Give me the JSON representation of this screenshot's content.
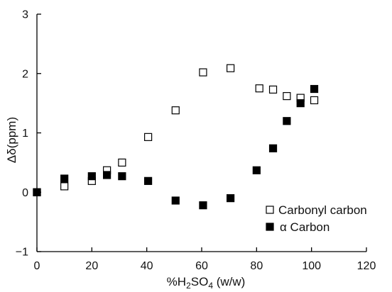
{
  "chart_data": {
    "type": "scatter",
    "xlabel_parts": [
      "%H",
      "2",
      "SO",
      "4",
      " (w/w)"
    ],
    "ylabel": "Δδ(ppm)",
    "xlim": [
      0,
      120
    ],
    "ylim": [
      -1,
      3
    ],
    "x_ticks": [
      0,
      20,
      40,
      60,
      80,
      100,
      120
    ],
    "y_ticks": [
      -1,
      0,
      1,
      2,
      3
    ],
    "grid": false,
    "legend_position": "lower-right",
    "series": [
      {
        "name": "Carbonyl carbon",
        "marker": "open-square",
        "points": [
          [
            0,
            0.0
          ],
          [
            10,
            0.1
          ],
          [
            20,
            0.19
          ],
          [
            25.5,
            0.37
          ],
          [
            31,
            0.5
          ],
          [
            40.5,
            0.93
          ],
          [
            50.5,
            1.38
          ],
          [
            60.5,
            2.02
          ],
          [
            70.5,
            2.09
          ],
          [
            81,
            1.75
          ],
          [
            86,
            1.73
          ],
          [
            91,
            1.62
          ],
          [
            96,
            1.59
          ],
          [
            101,
            1.55
          ]
        ]
      },
      {
        "name": "α Carbon",
        "marker": "filled-square",
        "points": [
          [
            0,
            0.0
          ],
          [
            10,
            0.23
          ],
          [
            20,
            0.27
          ],
          [
            25.5,
            0.29
          ],
          [
            31,
            0.27
          ],
          [
            40.5,
            0.19
          ],
          [
            50.5,
            -0.14
          ],
          [
            60.5,
            -0.22
          ],
          [
            70.5,
            -0.1
          ],
          [
            80,
            0.37
          ],
          [
            86,
            0.74
          ],
          [
            91,
            1.2
          ],
          [
            96,
            1.5
          ],
          [
            101,
            1.74
          ]
        ]
      }
    ]
  }
}
